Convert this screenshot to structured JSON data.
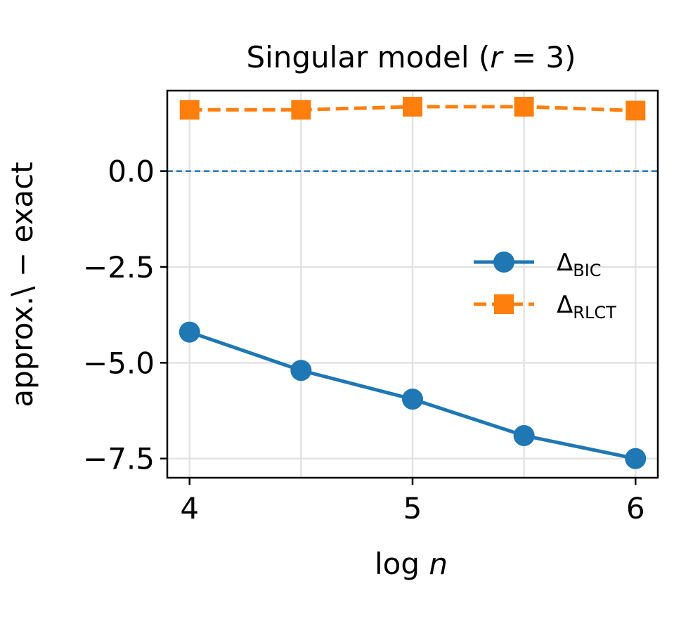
{
  "chart_data": {
    "type": "line",
    "title": {
      "prefix": "Singular model (",
      "var": "r",
      "eq": " = 3",
      "suffix": ")"
    },
    "xlabel": {
      "func": "log ",
      "var": "n"
    },
    "ylabel": "approx.\\ − exact",
    "xlim": [
      3.9,
      6.1
    ],
    "ylim": [
      -8.0,
      2.1
    ],
    "x_ticks": [
      {
        "value": 4,
        "label": "4"
      },
      {
        "value": 5,
        "label": "5"
      },
      {
        "value": 6,
        "label": "6"
      }
    ],
    "x_grid": [
      4,
      4.5,
      5,
      5.5,
      6
    ],
    "y_ticks": [
      {
        "value": 0.0,
        "label": "0.0"
      },
      {
        "value": -2.5,
        "label": "−2.5"
      },
      {
        "value": -5.0,
        "label": "−5.0"
      },
      {
        "value": -7.5,
        "label": "−7.5"
      }
    ],
    "grid": true,
    "reference_line": {
      "y": 0.0,
      "color": "#1f77b4",
      "style": "dashed"
    },
    "legend_position": "center-right",
    "x": [
      4.0,
      4.5,
      5.0,
      5.5,
      6.0
    ],
    "series": [
      {
        "id": "bic",
        "name": {
          "main": "Δ",
          "sub": "BIC"
        },
        "values": [
          -4.2,
          -5.2,
          -5.95,
          -6.9,
          -7.5
        ],
        "color": "#1f77b4",
        "marker": "circle",
        "line_style": "solid"
      },
      {
        "id": "rlct",
        "name": {
          "main": "Δ",
          "sub": "RLCT"
        },
        "values": [
          1.6,
          1.6,
          1.68,
          1.68,
          1.58
        ],
        "color": "#ff7f0e",
        "marker": "square",
        "line_style": "dashed"
      }
    ]
  }
}
